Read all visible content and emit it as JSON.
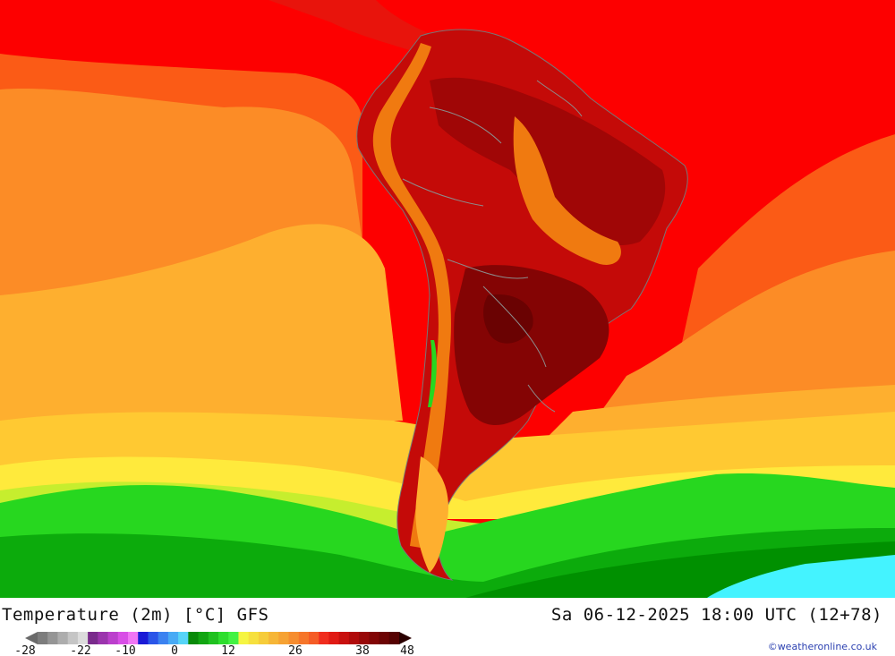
{
  "header": {
    "left_title": "Temperature (2m) [°C] GFS",
    "right_title": "Sa 06-12-2025 18:00 UTC (12+78)"
  },
  "legend": {
    "colors": [
      "#7d7d7d",
      "#959595",
      "#adadad",
      "#c5c5c5",
      "#dcdcdc",
      "#7a2b8c",
      "#9b34ad",
      "#bb3fcc",
      "#d84ee6",
      "#f075f5",
      "#1a1ad6",
      "#2a55e8",
      "#3b82f0",
      "#47aaf5",
      "#56d4f7",
      "#098a09",
      "#12a512",
      "#1fc11f",
      "#2ede2e",
      "#43f243",
      "#f5f542",
      "#f6e03e",
      "#f6cc3a",
      "#f6b637",
      "#f6a233",
      "#f68d2f",
      "#f6762a",
      "#f55c26",
      "#f02d1e",
      "#e01a14",
      "#c8100e",
      "#b00a0a",
      "#980808",
      "#820606",
      "#6c0404",
      "#560202"
    ],
    "ticks": [
      "-28",
      "-22",
      "-10",
      "0",
      "12",
      "26",
      "38",
      "48"
    ]
  },
  "credit": "©weatheronline.co.uk",
  "map": {
    "region": "South America",
    "ocean_colors": [
      "#fd0000",
      "#fb5b16",
      "#fc8c26",
      "#feaf2f",
      "#ffc932",
      "#ffea3c",
      "#c6ee2e",
      "#27d71f",
      "#0cab0c",
      "#009000",
      "#44f3ff"
    ],
    "land_colors": [
      "#f07a10",
      "#e8140c",
      "#c40a08",
      "#a00606",
      "#840404",
      "#6a0202"
    ]
  }
}
